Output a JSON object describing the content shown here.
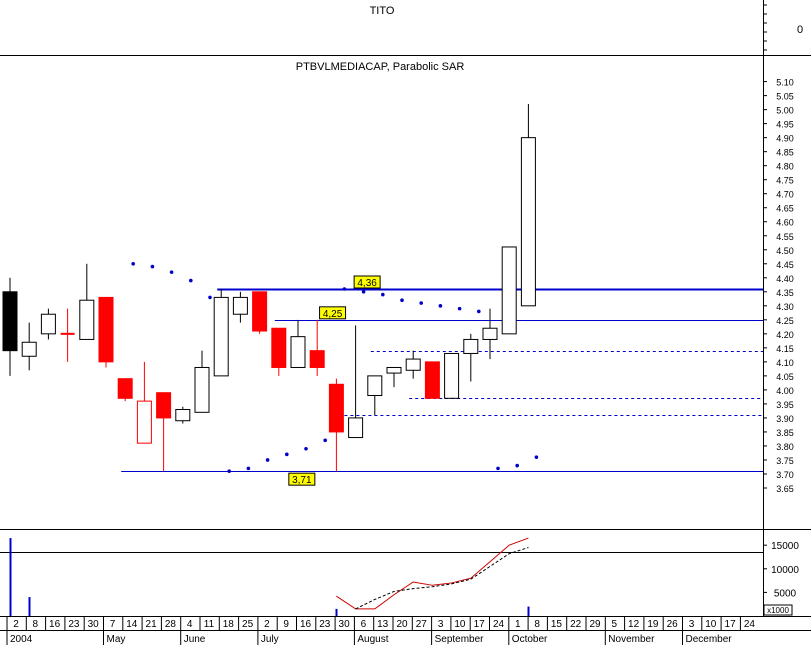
{
  "header": {
    "top_title": "TITO",
    "top_axis_label": "0",
    "main_title": "PTBVLMEDIACAP, Parabolic SAR",
    "volume_scale_note": "x1000"
  },
  "colors": {
    "up_body": "#ffffff",
    "down_body": "#ff0000",
    "first_body": "#000000",
    "level_line": "#0000cc",
    "sar_dots": "#0000cc",
    "volume_ma_line": "#cc0000",
    "volume_ma_dashed": "#000000",
    "callout_fill": "#ffff00",
    "grid_line": "#000000"
  },
  "chart_data": {
    "type": "candlestick",
    "title": "PTBVLMEDIACAP, Parabolic SAR",
    "y_axis": {
      "range": [
        3.6,
        5.12
      ],
      "ticks": [
        "5.10",
        "5.05",
        "5.00",
        "4.95",
        "4.90",
        "4.85",
        "4.80",
        "4.75",
        "4.70",
        "4.65",
        "4.60",
        "4.55",
        "4.50",
        "4.45",
        "4.40",
        "4.35",
        "4.30",
        "4.25",
        "4.20",
        "4.15",
        "4.10",
        "4.05",
        "4.00",
        "3.95",
        "3.90",
        "3.85",
        "3.80",
        "3.75",
        "3.70",
        "3.65"
      ]
    },
    "x_axis": {
      "tick_days": [
        "2",
        "8",
        "16",
        "23",
        "30",
        "7",
        "14",
        "21",
        "28",
        "4",
        "11",
        "18",
        "25",
        "2",
        "9",
        "16",
        "23",
        "30",
        "6",
        "13",
        "20",
        "27",
        "3",
        "10",
        "17",
        "24",
        "1",
        "8",
        "15",
        "22",
        "29",
        "5",
        "12",
        "19",
        "26",
        "3",
        "10",
        "17",
        "24"
      ],
      "month_labels": [
        {
          "label": "2004",
          "tick_index": 0
        },
        {
          "label": "May",
          "tick_index": 5
        },
        {
          "label": "June",
          "tick_index": 9
        },
        {
          "label": "July",
          "tick_index": 13
        },
        {
          "label": "August",
          "tick_index": 18
        },
        {
          "label": "September",
          "tick_index": 22
        },
        {
          "label": "October",
          "tick_index": 26
        },
        {
          "label": "November",
          "tick_index": 31
        },
        {
          "label": "December",
          "tick_index": 35
        }
      ]
    },
    "candles": [
      {
        "week": 0,
        "open": 4.35,
        "high": 4.4,
        "low": 4.05,
        "close": 4.14,
        "color": "black"
      },
      {
        "week": 1,
        "open": 4.12,
        "high": 4.24,
        "low": 4.07,
        "close": 4.17,
        "color": "up"
      },
      {
        "week": 2,
        "open": 4.2,
        "high": 4.29,
        "low": 4.18,
        "close": 4.27,
        "color": "up"
      },
      {
        "week": 3,
        "open": 4.2,
        "high": 4.29,
        "low": 4.1,
        "close": 4.2,
        "color": "doji"
      },
      {
        "week": 4,
        "open": 4.18,
        "high": 4.45,
        "low": 4.18,
        "close": 4.32,
        "color": "up"
      },
      {
        "week": 5,
        "open": 4.33,
        "high": 4.33,
        "low": 4.08,
        "close": 4.1,
        "color": "down"
      },
      {
        "week": 6,
        "open": 4.04,
        "high": 4.04,
        "low": 3.96,
        "close": 3.97,
        "color": "down"
      },
      {
        "week": 7,
        "open": 3.96,
        "high": 4.1,
        "low": 3.81,
        "close": 3.81,
        "color": "down_hollow"
      },
      {
        "week": 8,
        "open": 3.99,
        "high": 3.99,
        "low": 3.71,
        "close": 3.9,
        "color": "down"
      },
      {
        "week": 9,
        "open": 3.89,
        "high": 3.94,
        "low": 3.88,
        "close": 3.93,
        "color": "up"
      },
      {
        "week": 10,
        "open": 3.92,
        "high": 4.14,
        "low": 3.92,
        "close": 4.08,
        "color": "up"
      },
      {
        "week": 11,
        "open": 4.05,
        "high": 4.36,
        "low": 4.05,
        "close": 4.33,
        "color": "up"
      },
      {
        "week": 12,
        "open": 4.27,
        "high": 4.35,
        "low": 4.24,
        "close": 4.33,
        "color": "up"
      },
      {
        "week": 13,
        "open": 4.35,
        "high": 4.35,
        "low": 4.2,
        "close": 4.21,
        "color": "down"
      },
      {
        "week": 14,
        "open": 4.22,
        "high": 4.22,
        "low": 4.05,
        "close": 4.08,
        "color": "down"
      },
      {
        "week": 15,
        "open": 4.08,
        "high": 4.25,
        "low": 4.08,
        "close": 4.19,
        "color": "up"
      },
      {
        "week": 16,
        "open": 4.14,
        "high": 4.25,
        "low": 4.05,
        "close": 4.08,
        "color": "down"
      },
      {
        "week": 17,
        "open": 4.02,
        "high": 4.04,
        "low": 3.71,
        "close": 3.85,
        "color": "down"
      },
      {
        "week": 18,
        "open": 3.83,
        "high": 4.23,
        "low": 3.83,
        "close": 3.9,
        "color": "up"
      },
      {
        "week": 19,
        "open": 3.98,
        "high": 4.05,
        "low": 3.91,
        "close": 4.05,
        "color": "up"
      },
      {
        "week": 20,
        "open": 4.06,
        "high": 4.08,
        "low": 4.01,
        "close": 4.08,
        "color": "up"
      },
      {
        "week": 21,
        "open": 4.07,
        "high": 4.14,
        "low": 4.04,
        "close": 4.11,
        "color": "up"
      },
      {
        "week": 22,
        "open": 4.1,
        "high": 4.1,
        "low": 3.97,
        "close": 3.97,
        "color": "down"
      },
      {
        "week": 23,
        "open": 3.97,
        "high": 4.13,
        "low": 3.97,
        "close": 4.13,
        "color": "up"
      },
      {
        "week": 24,
        "open": 4.13,
        "high": 4.2,
        "low": 4.03,
        "close": 4.18,
        "color": "up"
      },
      {
        "week": 25,
        "open": 4.18,
        "high": 4.29,
        "low": 4.11,
        "close": 4.22,
        "color": "up"
      },
      {
        "week": 26,
        "open": 4.2,
        "high": 4.51,
        "low": 4.2,
        "close": 4.51,
        "color": "up"
      },
      {
        "week": 27,
        "open": 4.3,
        "high": 5.02,
        "low": 4.3,
        "close": 4.9,
        "color": "up"
      }
    ],
    "sar_points": [
      {
        "week": 6,
        "value": 4.45
      },
      {
        "week": 7,
        "value": 4.44
      },
      {
        "week": 8,
        "value": 4.42
      },
      {
        "week": 9,
        "value": 4.39
      },
      {
        "week": 10,
        "value": 4.33
      },
      {
        "week": 11,
        "value": 3.71
      },
      {
        "week": 12,
        "value": 3.72
      },
      {
        "week": 13,
        "value": 3.75
      },
      {
        "week": 14,
        "value": 3.77
      },
      {
        "week": 15,
        "value": 3.79
      },
      {
        "week": 16,
        "value": 3.82
      },
      {
        "week": 17,
        "value": 4.36
      },
      {
        "week": 18,
        "value": 4.35
      },
      {
        "week": 19,
        "value": 4.34
      },
      {
        "week": 20,
        "value": 4.32
      },
      {
        "week": 21,
        "value": 4.31
      },
      {
        "week": 22,
        "value": 4.3
      },
      {
        "week": 23,
        "value": 4.29
      },
      {
        "week": 24,
        "value": 4.28
      },
      {
        "week": 25,
        "value": 3.72
      },
      {
        "week": 26,
        "value": 3.73
      },
      {
        "week": 27,
        "value": 3.76
      }
    ],
    "levels": [
      {
        "value": 4.36,
        "label": "4,36",
        "style": "solid",
        "from_week": 11
      },
      {
        "value": 4.25,
        "label": "4,25",
        "style": "solid",
        "from_week": 14
      },
      {
        "value": 3.71,
        "label": "3,71",
        "style": "solid",
        "from_week": 6
      },
      {
        "value": 4.14,
        "label": "",
        "style": "dashed",
        "from_week": 19
      },
      {
        "value": 3.97,
        "label": "",
        "style": "dashed",
        "from_week": 21
      },
      {
        "value": 3.91,
        "label": "",
        "style": "dashed",
        "from_week": 17
      }
    ],
    "volume": {
      "y_ticks": [
        "15000",
        "10000",
        "5000"
      ],
      "y_range": [
        0,
        18000
      ],
      "threshold": 13500,
      "bars": [
        {
          "week": 0,
          "value": 16500
        },
        {
          "week": 1,
          "value": 4000
        },
        {
          "week": 17,
          "value": 1500
        },
        {
          "week": 27,
          "value": 2000
        }
      ],
      "ma": [
        {
          "week": 17,
          "value": 4200
        },
        {
          "week": 18,
          "value": 1500
        },
        {
          "week": 19,
          "value": 1500
        },
        {
          "week": 20,
          "value": 4500
        },
        {
          "week": 21,
          "value": 7200
        },
        {
          "week": 22,
          "value": 6500
        },
        {
          "week": 23,
          "value": 7000
        },
        {
          "week": 24,
          "value": 8000
        },
        {
          "week": 25,
          "value": 11500
        },
        {
          "week": 26,
          "value": 15000
        },
        {
          "week": 27,
          "value": 16500
        }
      ],
      "ma_dashed": [
        {
          "week": 18,
          "value": 1500
        },
        {
          "week": 19,
          "value": 3500
        },
        {
          "week": 20,
          "value": 5200
        },
        {
          "week": 21,
          "value": 5800
        },
        {
          "week": 22,
          "value": 6200
        },
        {
          "week": 23,
          "value": 6800
        },
        {
          "week": 24,
          "value": 7800
        },
        {
          "week": 25,
          "value": 10500
        },
        {
          "week": 26,
          "value": 13200
        },
        {
          "week": 27,
          "value": 14500
        }
      ]
    }
  }
}
